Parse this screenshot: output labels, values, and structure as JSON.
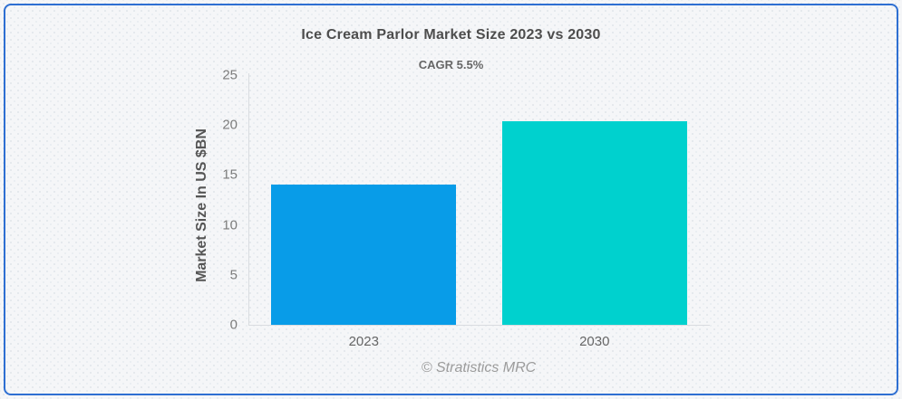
{
  "chart_data": {
    "type": "bar",
    "title": "Ice Cream Parlor Market Size 2023 vs 2030",
    "subtitle": "CAGR 5.5%",
    "xlabel": "",
    "ylabel": "Market Size In US $BN",
    "categories": [
      "2023",
      "2030"
    ],
    "values": [
      14.0,
      20.4
    ],
    "bar_colors": [
      "#089CE8",
      "#00D1CE"
    ],
    "ylim": [
      0,
      25
    ],
    "yticks": [
      0,
      5,
      10,
      15,
      20,
      25
    ],
    "grid": false,
    "legend": false
  },
  "footer": {
    "credit": "© Stratistics MRC"
  },
  "colors": {
    "border": "#2E6FD2",
    "background": "#F5F6F8",
    "dot_pattern": "#E4E8EC",
    "axis_line": "#D9DCE0",
    "title_text": "#4D4D4D",
    "subtitle_text": "#666666",
    "tick_text": "#7C7C7C",
    "xlabel_text": "#666666",
    "footer_text": "#9B9B9B"
  }
}
